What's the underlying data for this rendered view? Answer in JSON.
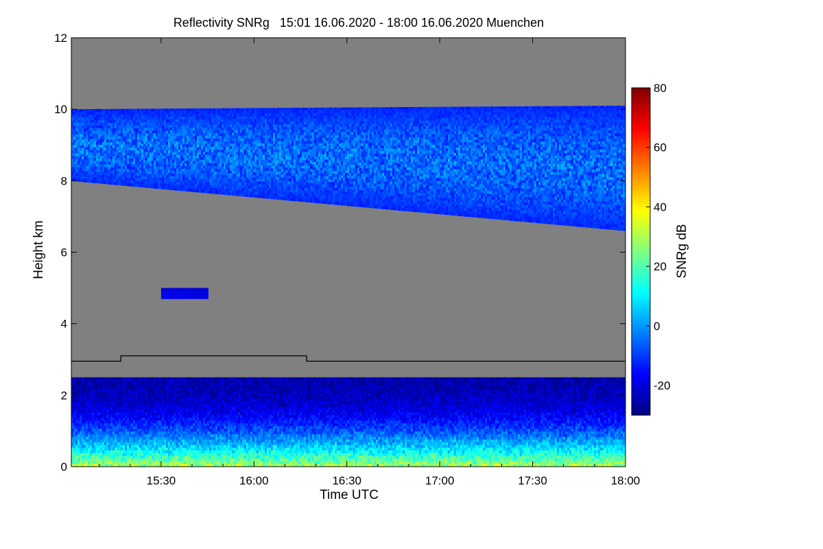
{
  "chart_data": {
    "type": "heatmap",
    "title": "Reflectivity SNRg   15:01 16.06.2020 - 18:00 16.06.2020 Muenchen",
    "xlabel": "Time UTC",
    "ylabel": "Height km",
    "colorbar_label": "SNRg dB",
    "xlim": [
      "15:01",
      "18:00"
    ],
    "ylim": [
      0,
      12
    ],
    "x_ticks": [
      "15:30",
      "16:00",
      "16:30",
      "17:00",
      "17:30",
      "18:00"
    ],
    "y_ticks": [
      "0",
      "2",
      "4",
      "6",
      "8",
      "10",
      "12"
    ],
    "colorbar_range": [
      -30,
      80
    ],
    "colorbar_ticks": [
      "-20",
      "0",
      "20",
      "40",
      "60",
      "80"
    ],
    "colormap": [
      "#00007f",
      "#0000ff",
      "#0080ff",
      "#00ffff",
      "#80ff80",
      "#ffff00",
      "#ff8000",
      "#ff0000",
      "#7f0000"
    ],
    "background_color": "#808080",
    "grid": false,
    "legend": "colorbar on right",
    "regions": [
      {
        "name": "cirrus layer",
        "time_start": "15:01",
        "time_end": "18:00",
        "base_km_start": 8.0,
        "base_km_end": 6.6,
        "top_km_start": 10.0,
        "top_km_end": 10.1,
        "snr_db_range": [
          -25,
          5
        ]
      },
      {
        "name": "small cloud",
        "time_start": "15:30",
        "time_end": "15:45",
        "base_km": 4.7,
        "top_km": 5.0,
        "snr_db_range": [
          -25,
          -15
        ]
      },
      {
        "name": "boundary layer",
        "time_start": "15:01",
        "time_end": "18:00",
        "base_km": 0.0,
        "top_km": 2.5,
        "snr_db_range": [
          -25,
          40
        ]
      }
    ],
    "line_series": {
      "color": "#000000",
      "points": [
        {
          "t": "15:01",
          "h": 2.95
        },
        {
          "t": "15:17",
          "h": 2.95
        },
        {
          "t": "15:17",
          "h": 3.1
        },
        {
          "t": "16:17",
          "h": 3.1
        },
        {
          "t": "16:17",
          "h": 2.95
        },
        {
          "t": "18:00",
          "h": 2.95
        }
      ]
    }
  }
}
